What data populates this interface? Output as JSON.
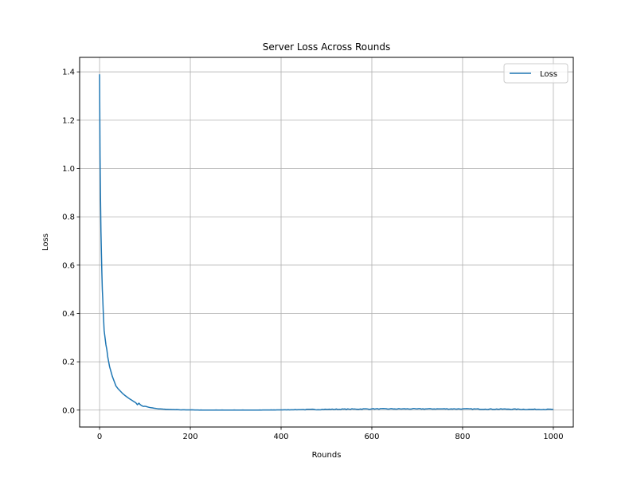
{
  "chart_data": {
    "type": "line",
    "title": "Server Loss Across Rounds",
    "xlabel": "Rounds",
    "ylabel": "Loss",
    "xlim": [
      -44,
      1044
    ],
    "ylim": [
      -0.07,
      1.46
    ],
    "xticks": [
      0,
      200,
      400,
      600,
      800,
      1000
    ],
    "yticks": [
      0.0,
      0.2,
      0.4,
      0.6,
      0.8,
      1.0,
      1.2,
      1.4
    ],
    "ytick_labels": [
      "0.0",
      "0.2",
      "0.4",
      "0.6",
      "0.8",
      "1.0",
      "1.2",
      "1.4"
    ],
    "grid": true,
    "legend": "top-right",
    "series": [
      {
        "name": "Loss",
        "color": "#1f77b4",
        "x": [
          0,
          1,
          2,
          3,
          4,
          5,
          6,
          7,
          8,
          9,
          10,
          12,
          14,
          16,
          18,
          20,
          22,
          25,
          28,
          30,
          33,
          36,
          40,
          45,
          50,
          55,
          60,
          65,
          70,
          75,
          80,
          90,
          100,
          110,
          120,
          130,
          140,
          150,
          160,
          170,
          180,
          190,
          200,
          220,
          240,
          260,
          280,
          300,
          350,
          400,
          450,
          500,
          550,
          600,
          650,
          700,
          750,
          800,
          850,
          900,
          950,
          1000
        ],
        "y": [
          1.39,
          1.05,
          0.88,
          0.74,
          0.65,
          0.57,
          0.5,
          0.46,
          0.41,
          0.37,
          0.33,
          0.3,
          0.27,
          0.25,
          0.22,
          0.2,
          0.18,
          0.16,
          0.14,
          0.13,
          0.115,
          0.1,
          0.09,
          0.08,
          0.07,
          0.062,
          0.055,
          0.048,
          0.042,
          0.036,
          0.03,
          0.022,
          0.016,
          0.011,
          0.008,
          0.005,
          0.004,
          0.003,
          0.002,
          0.002,
          0.001,
          0.001,
          0.001,
          0.0,
          0.0,
          0.0,
          0.0,
          0.0,
          0.0,
          0.001,
          0.002,
          0.003,
          0.004,
          0.005,
          0.005,
          0.005,
          0.005,
          0.005,
          0.004,
          0.004,
          0.003,
          0.003
        ]
      }
    ]
  }
}
